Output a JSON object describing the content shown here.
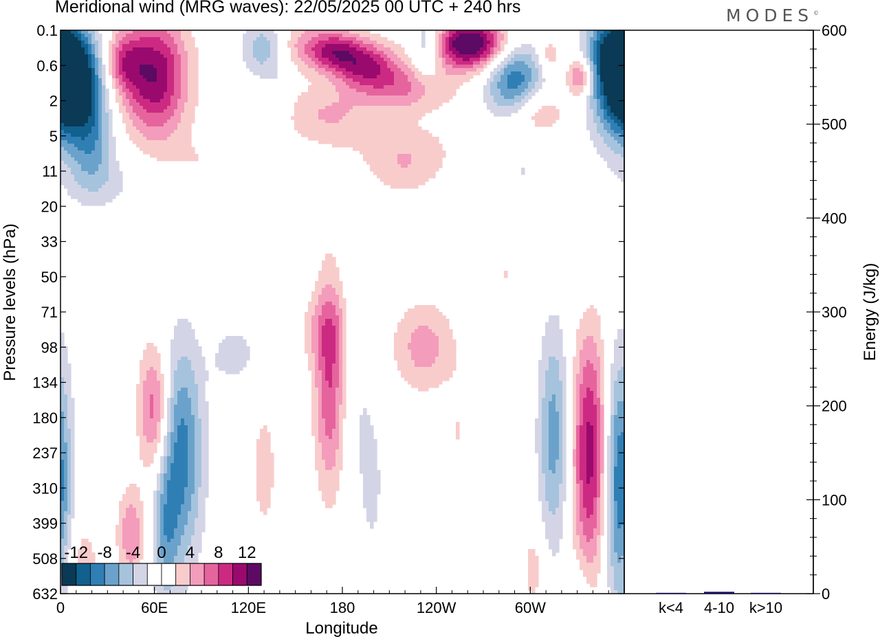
{
  "title": "Meridional wind (MRG waves):  22/05/2025  00 UTC  + 240 hrs",
  "brand": "MODES",
  "colors": {
    "levels": [
      "#0a3a55",
      "#11608e",
      "#2f7fb5",
      "#6ba2cb",
      "#a6c3dd",
      "#d3d5e6",
      "#ffffff",
      "#ffffff",
      "#f9cccc",
      "#f49cbb",
      "#e6649d",
      "#cc2a82",
      "#9a0a6e",
      "#5c0a64"
    ],
    "energy_bar": "#1b1464"
  },
  "chart_data": [
    {
      "type": "heatmap",
      "title": "Meridional wind (MRG waves):  22/05/2025  00 UTC  + 240 hrs",
      "xlabel": "Longitude",
      "ylabel": "Pressure levels (hPa)",
      "x_ticks": [
        "0",
        "60E",
        "120E",
        "180",
        "120W",
        "60W"
      ],
      "x_tick_degrees": [
        0,
        60,
        120,
        180,
        240,
        300
      ],
      "xlim": [
        0,
        360
      ],
      "y_ticks": [
        "0.1",
        "0.6",
        "2",
        "5",
        "11",
        "20",
        "33",
        "50",
        "71",
        "98",
        "134",
        "180",
        "237",
        "310",
        "399",
        "508",
        "632"
      ],
      "colorbar_labels": [
        "-12",
        "-8",
        "-4",
        "0",
        "4",
        "8",
        "12"
      ],
      "colorbar_bins": 14,
      "features": [
        {
          "lon": 10,
          "level": 1.5,
          "value": -13,
          "wlon": 12,
          "wlev": 1.0
        },
        {
          "lon": 20,
          "level": 3.2,
          "value": -6,
          "wlon": 10,
          "wlev": 1.0
        },
        {
          "lon": 60,
          "level": 1.3,
          "value": 12,
          "wlon": 15,
          "wlev": 1.2
        },
        {
          "lon": 40,
          "level": 0.9,
          "value": 6,
          "wlon": 8,
          "wlev": 0.6
        },
        {
          "lon": 130,
          "level": 0.5,
          "value": -6,
          "wlon": 10,
          "wlev": 0.6
        },
        {
          "lon": 140,
          "level": 2.1,
          "value": -2,
          "wlon": 5,
          "wlev": 0.7
        },
        {
          "lon": 155,
          "level": 0.4,
          "value": 4,
          "wlon": 16,
          "wlev": 0.5
        },
        {
          "lon": 175,
          "level": 0.6,
          "value": 8,
          "wlon": 12,
          "wlev": 0.4
        },
        {
          "lon": 195,
          "level": 1.0,
          "value": 9,
          "wlon": 14,
          "wlev": 0.5
        },
        {
          "lon": 222,
          "level": 1.6,
          "value": 6,
          "wlon": 20,
          "wlev": 0.5
        },
        {
          "lon": 170,
          "level": 2.4,
          "value": 4,
          "wlon": 22,
          "wlev": 0.6
        },
        {
          "lon": 220,
          "level": 3.4,
          "value": 3,
          "wlon": 25,
          "wlev": 0.6
        },
        {
          "lon": 234,
          "level": 0.5,
          "value": -6,
          "wlon": 7,
          "wlev": 0.7
        },
        {
          "lon": 262,
          "level": 0.4,
          "value": 15,
          "wlon": 17,
          "wlev": 0.5
        },
        {
          "lon": 290,
          "level": 1.4,
          "value": -10,
          "wlon": 13,
          "wlev": 0.8
        },
        {
          "lon": 303,
          "level": 2.3,
          "value": 5,
          "wlon": 13,
          "wlev": 0.5
        },
        {
          "lon": 312,
          "level": 0.7,
          "value": 4,
          "wlon": 5,
          "wlev": 0.4
        },
        {
          "lon": 332,
          "level": 1.3,
          "value": 8,
          "wlon": 6,
          "wlev": 0.4
        },
        {
          "lon": 355,
          "level": 0.6,
          "value": -13,
          "wlon": 13,
          "wlev": 0.8
        },
        {
          "lon": 355,
          "level": 2.0,
          "value": -8,
          "wlon": 12,
          "wlev": 1.0
        },
        {
          "lon": 95,
          "level": 3.8,
          "value": 2,
          "wlon": 28,
          "wlev": 0.6
        },
        {
          "lon": 220,
          "level": 4.1,
          "value": 2,
          "wlon": 15,
          "wlev": 0.5
        },
        {
          "lon": 295,
          "level": 4.0,
          "value": -2,
          "wlon": 18,
          "wlev": 0.5
        },
        {
          "lon": 35,
          "level": 4.3,
          "value": -2,
          "wlon": 28,
          "wlev": 0.6
        },
        {
          "lon": 235,
          "level": 5.8,
          "value": 1.5,
          "wlon": 4,
          "wlev": 0.3
        },
        {
          "lon": 285,
          "level": 6.9,
          "value": 2,
          "wlon": 12,
          "wlev": 0.8
        },
        {
          "lon": 330,
          "level": 7.4,
          "value": -1.5,
          "wlon": 6,
          "wlev": 0.5
        },
        {
          "lon": 60,
          "level": 10.8,
          "value": 8,
          "wlon": 7,
          "wlev": 1.3
        },
        {
          "lon": 45,
          "level": 14.3,
          "value": 6,
          "wlon": 6,
          "wlev": 0.9
        },
        {
          "lon": 77,
          "level": 12.0,
          "value": -9,
          "wlon": 10,
          "wlev": 2.2
        },
        {
          "lon": 67,
          "level": 14.3,
          "value": -5,
          "wlon": 6,
          "wlev": 1.5
        },
        {
          "lon": 110,
          "level": 9.2,
          "value": -3,
          "wlon": 12,
          "wlev": 0.6
        },
        {
          "lon": 95,
          "level": 8.4,
          "value": 2,
          "wlon": 4,
          "wlev": 0.6
        },
        {
          "lon": 172,
          "level": 10.0,
          "value": 8,
          "wlon": 7,
          "wlev": 2.2
        },
        {
          "lon": 168,
          "level": 8.5,
          "value": 3,
          "wlon": 12,
          "wlev": 0.7
        },
        {
          "lon": 190,
          "level": 10.5,
          "value": -2,
          "wlon": 8,
          "wlev": 3.0
        },
        {
          "lon": 232,
          "level": 9.0,
          "value": 5,
          "wlon": 14,
          "wlev": 0.9
        },
        {
          "lon": 275,
          "level": 11.0,
          "value": 2,
          "wlon": 6,
          "wlev": 1.5
        },
        {
          "lon": 315,
          "level": 11.5,
          "value": -7,
          "wlon": 7,
          "wlev": 2.2
        },
        {
          "lon": 338,
          "level": 12.0,
          "value": 11,
          "wlon": 8,
          "wlev": 2.4
        },
        {
          "lon": 357,
          "level": 12.8,
          "value": -10,
          "wlon": 7,
          "wlev": 2.5
        },
        {
          "lon": 14,
          "level": 15.0,
          "value": 3,
          "wlon": 8,
          "wlev": 0.8
        },
        {
          "lon": 130,
          "level": 12.5,
          "value": 3,
          "wlon": 6,
          "wlev": 1.4
        },
        {
          "lon": 200,
          "level": 13.0,
          "value": -2,
          "wlon": 5,
          "wlev": 1.5
        },
        {
          "lon": 254,
          "level": 11.5,
          "value": 2,
          "wlon": 5,
          "wlev": 1.2
        },
        {
          "lon": 302,
          "level": 15.3,
          "value": 3,
          "wlon": 5,
          "wlev": 0.9
        },
        {
          "lon": 260,
          "level": 15.5,
          "value": -2,
          "wlon": 5,
          "wlev": 0.8
        },
        {
          "lon": 330,
          "level": 15.8,
          "value": -2,
          "wlon": 7,
          "wlev": 0.6
        }
      ]
    },
    {
      "type": "bar",
      "ylabel": "Energy (J/kg)",
      "categories": [
        "k<4",
        "4-10",
        "k>10"
      ],
      "values": [
        0,
        2,
        0
      ],
      "ylim": [
        0,
        600
      ],
      "y_ticks": [
        0,
        100,
        200,
        300,
        400,
        500,
        600
      ]
    }
  ]
}
